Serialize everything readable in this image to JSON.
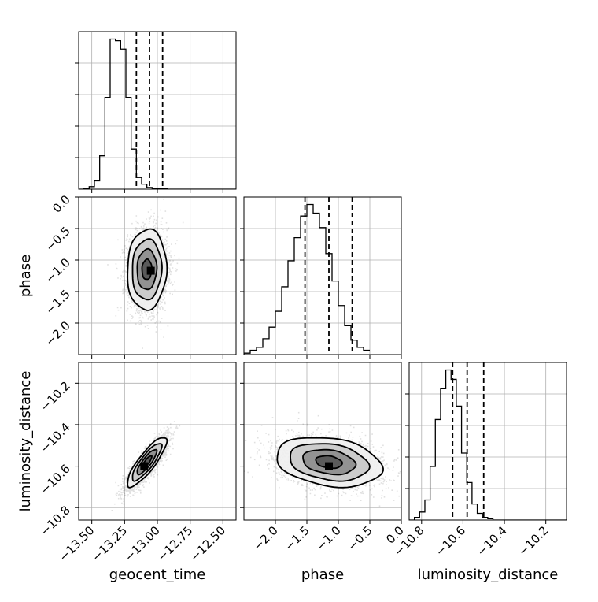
{
  "chart_data": {
    "type": "corner",
    "parameters": [
      {
        "name": "geocent_time",
        "label": "geocent_time",
        "range": [
          -13.6,
          -12.4
        ],
        "ticks": [
          -13.5,
          -13.25,
          -13.0,
          -12.75,
          -12.5
        ],
        "tick_labels": [
          "−13.50",
          "−13.25",
          "−13.00",
          "−12.75",
          "−12.50"
        ],
        "quantiles": [
          -13.16,
          -13.06,
          -12.96
        ],
        "hist_edges_start": -13.6,
        "hist_bin_width": 0.04,
        "hist_counts": [
          0,
          1,
          3,
          10,
          40,
          110,
          180,
          178,
          168,
          110,
          48,
          14,
          6,
          2,
          1,
          1,
          1,
          0,
          0,
          0,
          0,
          0,
          0,
          0,
          0,
          0,
          0,
          0,
          0,
          0
        ]
      },
      {
        "name": "phase",
        "label": "phase",
        "range": [
          -2.5,
          0.0
        ],
        "ticks": [
          -2.0,
          -1.5,
          -1.0,
          -0.5,
          0.0
        ],
        "tick_labels": [
          "−2.0",
          "−1.5",
          "−1.0",
          "−0.5",
          "0.0"
        ],
        "quantiles": [
          -1.53,
          -1.15,
          -0.78
        ],
        "hist_edges_start": -2.5,
        "hist_bin_width": 0.1,
        "hist_counts": [
          1,
          3,
          5,
          11,
          19,
          30,
          47,
          65,
          81,
          96,
          104,
          98,
          88,
          70,
          51,
          34,
          20,
          10,
          5,
          3
        ]
      },
      {
        "name": "luminosity_distance",
        "label": "luminosity_distance",
        "range": [
          -10.86,
          -10.1
        ],
        "ticks": [
          -10.8,
          -10.6,
          -10.4,
          -10.2
        ],
        "tick_labels": [
          "−10.8",
          "−10.6",
          "−10.4",
          "−10.2"
        ],
        "quantiles": [
          -10.65,
          -10.58,
          -10.5
        ],
        "hist_edges_start": -10.86,
        "hist_bin_width": 0.0253,
        "hist_counts": [
          0,
          2,
          6,
          15,
          40,
          75,
          98,
          112,
          105,
          85,
          50,
          28,
          12,
          5,
          2,
          1,
          0,
          0,
          0,
          0,
          0,
          0,
          0,
          0,
          0,
          0,
          0,
          0,
          0,
          0
        ]
      }
    ],
    "pairs": [
      {
        "x": "geocent_time",
        "y": "phase",
        "mean": [
          -13.08,
          -1.15
        ],
        "sigma": [
          0.075,
          0.32
        ],
        "rho": 0.05,
        "contour_sigmas": [
          0.5,
          1.0,
          1.5,
          2.0
        ],
        "peak": [
          -13.05,
          -1.17
        ],
        "n_points": 3000
      },
      {
        "x": "geocent_time",
        "y": "luminosity_distance",
        "mean": [
          -13.08,
          -10.58
        ],
        "sigma": [
          0.075,
          0.06
        ],
        "rho": 0.85,
        "contour_sigmas": [
          0.5,
          1.0,
          1.5,
          2.0
        ],
        "peak": [
          -13.1,
          -10.6
        ],
        "n_points": 3000
      },
      {
        "x": "phase",
        "y": "luminosity_distance",
        "mean": [
          -1.15,
          -10.58
        ],
        "sigma": [
          0.42,
          0.06
        ],
        "rho": -0.25,
        "contour_sigmas": [
          0.5,
          1.0,
          1.5,
          2.0
        ],
        "peak": [
          -1.15,
          -10.6
        ],
        "n_points": 3000
      }
    ],
    "grid": true
  }
}
